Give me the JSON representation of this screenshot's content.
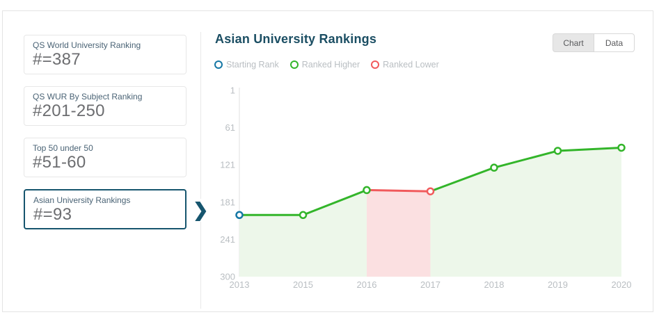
{
  "sidebar": {
    "chevron_icon": "❯",
    "cards": [
      {
        "label": "QS World University Ranking",
        "value": "#=387",
        "selected": false
      },
      {
        "label": "QS WUR By Subject Ranking",
        "value": "#201-250",
        "selected": false
      },
      {
        "label": "Top 50 under 50",
        "value": "#51-60",
        "selected": false
      },
      {
        "label": "Asian University Rankings",
        "value": "#=93",
        "selected": true
      }
    ]
  },
  "header": {
    "title": "Asian University Rankings",
    "view_toggle": [
      {
        "label": "Chart",
        "active": true
      },
      {
        "label": "Data",
        "active": false
      }
    ]
  },
  "legend": [
    {
      "label": "Starting Rank",
      "color": "#1577a5"
    },
    {
      "label": "Ranked Higher",
      "color": "#33b52a"
    },
    {
      "label": "Ranked Lower",
      "color": "#f15a5c"
    }
  ],
  "colors": {
    "title": "#1b4e63",
    "accent_dark_teal": "#16556e",
    "starting": "#1577a5",
    "higher": "#33b52a",
    "lower": "#f15a5c",
    "higher_fill": "#edf7ea",
    "lower_fill": "#fbe0e1",
    "axis_line": "#e2e2e2",
    "axis_text": "#b9bec2"
  },
  "chart_data": {
    "type": "line",
    "title": "Asian University Rankings",
    "x_labels": [
      "2013",
      "2015",
      "2016",
      "2017",
      "2018",
      "2019",
      "2020"
    ],
    "series": [
      {
        "name": "Asian University Rank",
        "values": [
          201,
          201,
          161,
          163,
          125,
          98,
          93
        ]
      }
    ],
    "point_types": [
      "start",
      "higher",
      "higher",
      "lower",
      "higher",
      "higher",
      "higher"
    ],
    "y_ticks": [
      1,
      61,
      121,
      181,
      241,
      300
    ],
    "y_range": [
      1,
      300
    ],
    "y_axis_inverted": true,
    "grid": false,
    "legend": [
      "Starting Rank",
      "Ranked Higher",
      "Ranked Lower"
    ],
    "legend_position": "top-left"
  }
}
